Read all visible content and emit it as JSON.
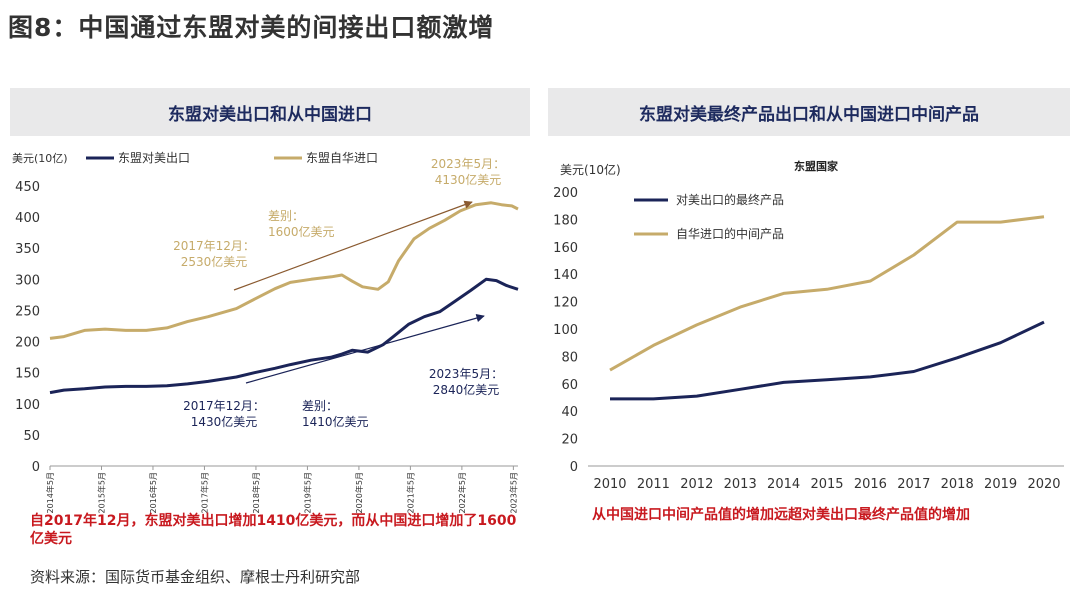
{
  "figure_title": "图8：中国通过东盟对美的间接出口额激增",
  "left_note": "自2017年12月，东盟对美出口增加1410亿美元，而从中国进口增加了1600亿美元",
  "right_note": "从中国进口中间产品值的增加远超对美出口最终产品值的增加",
  "source": "资料来源：国际货币基金组织、摩根士丹利研究部",
  "colors": {
    "navy": "#1b2458",
    "gold": "#c6ab6a",
    "red": "#c8191f",
    "arrow_brown": "#8a5a30"
  },
  "chart_data": [
    {
      "type": "line",
      "title": "东盟对美出口和从中国进口",
      "ylabel": "美元(10亿)",
      "ylim": [
        0,
        450
      ],
      "yticks": [
        "0",
        "50",
        "100",
        "150",
        "200",
        "250",
        "300",
        "350",
        "400",
        "450"
      ],
      "x_ticks": [
        "2014年5月",
        "2015年5月",
        "2016年5月",
        "2017年5月",
        "2018年5月",
        "2019年5月",
        "2020年5月",
        "2021年5月",
        "2022年5月",
        "2023年5月"
      ],
      "series": [
        {
          "name": "东盟对美出口",
          "color": "#1b2458",
          "x": [
            2014.33,
            2014.6,
            2015.0,
            2015.4,
            2015.8,
            2016.2,
            2016.6,
            2017.0,
            2017.4,
            2017.95,
            2018.3,
            2018.7,
            2019.0,
            2019.4,
            2019.8,
            2020.0,
            2020.2,
            2020.5,
            2020.8,
            2021.0,
            2021.3,
            2021.6,
            2021.9,
            2022.2,
            2022.5,
            2022.8,
            2023.0,
            2023.2,
            2023.42
          ],
          "values": [
            118,
            122,
            124,
            127,
            128,
            128,
            129,
            132,
            136,
            143,
            150,
            157,
            163,
            170,
            175,
            180,
            186,
            183,
            195,
            208,
            228,
            240,
            248,
            265,
            282,
            300,
            298,
            290,
            284
          ]
        },
        {
          "name": "东盟自华进口",
          "color": "#c6ab6a",
          "x": [
            2014.33,
            2014.6,
            2015.0,
            2015.4,
            2015.8,
            2016.2,
            2016.6,
            2017.0,
            2017.4,
            2017.95,
            2018.3,
            2018.7,
            2019.0,
            2019.4,
            2019.8,
            2020.0,
            2020.2,
            2020.4,
            2020.7,
            2020.9,
            2021.1,
            2021.4,
            2021.7,
            2022.0,
            2022.3,
            2022.6,
            2022.9,
            2023.1,
            2023.3,
            2023.42
          ],
          "values": [
            205,
            208,
            218,
            220,
            218,
            218,
            222,
            232,
            240,
            253,
            268,
            285,
            295,
            300,
            304,
            307,
            297,
            288,
            284,
            296,
            330,
            365,
            382,
            395,
            410,
            420,
            423,
            420,
            418,
            413
          ]
        }
      ],
      "annotations": [
        {
          "label": "2023年5月：",
          "sublabel": "4130亿美元",
          "color": "#c6ab6a"
        },
        {
          "label": "差别：",
          "sublabel": "1600亿美元",
          "color": "#c6ab6a"
        },
        {
          "label": "2017年12月：",
          "sublabel": "2530亿美元",
          "color": "#c6ab6a"
        },
        {
          "label": "2023年5月：",
          "sublabel": "2840亿美元",
          "color": "#1b2458"
        },
        {
          "label": "2017年12月：",
          "sublabel": "1430亿美元",
          "color": "#1b2458"
        },
        {
          "label": "差别：",
          "sublabel": "1410亿美元",
          "color": "#1b2458"
        }
      ],
      "legend_position": "top"
    },
    {
      "type": "line",
      "title": "东盟对美最终产品出口和从中国进口中间产品",
      "subtitle": "东盟国家",
      "ylabel": "美元(10亿)",
      "ylim": [
        0,
        200
      ],
      "yticks": [
        "0",
        "20",
        "40",
        "60",
        "80",
        "100",
        "120",
        "140",
        "160",
        "180",
        "200"
      ],
      "categories": [
        "2010",
        "2011",
        "2012",
        "2013",
        "2014",
        "2015",
        "2016",
        "2017",
        "2018",
        "2019",
        "2020"
      ],
      "series": [
        {
          "name": "对美出口的最终产品",
          "color": "#1b2458",
          "values": [
            49,
            49,
            51,
            56,
            61,
            63,
            65,
            69,
            79,
            90,
            105
          ]
        },
        {
          "name": "自华进口的中间产品",
          "color": "#c6ab6a",
          "values": [
            70,
            88,
            103,
            116,
            126,
            129,
            135,
            154,
            178,
            178,
            182
          ]
        }
      ],
      "legend_position": "top-left"
    }
  ]
}
